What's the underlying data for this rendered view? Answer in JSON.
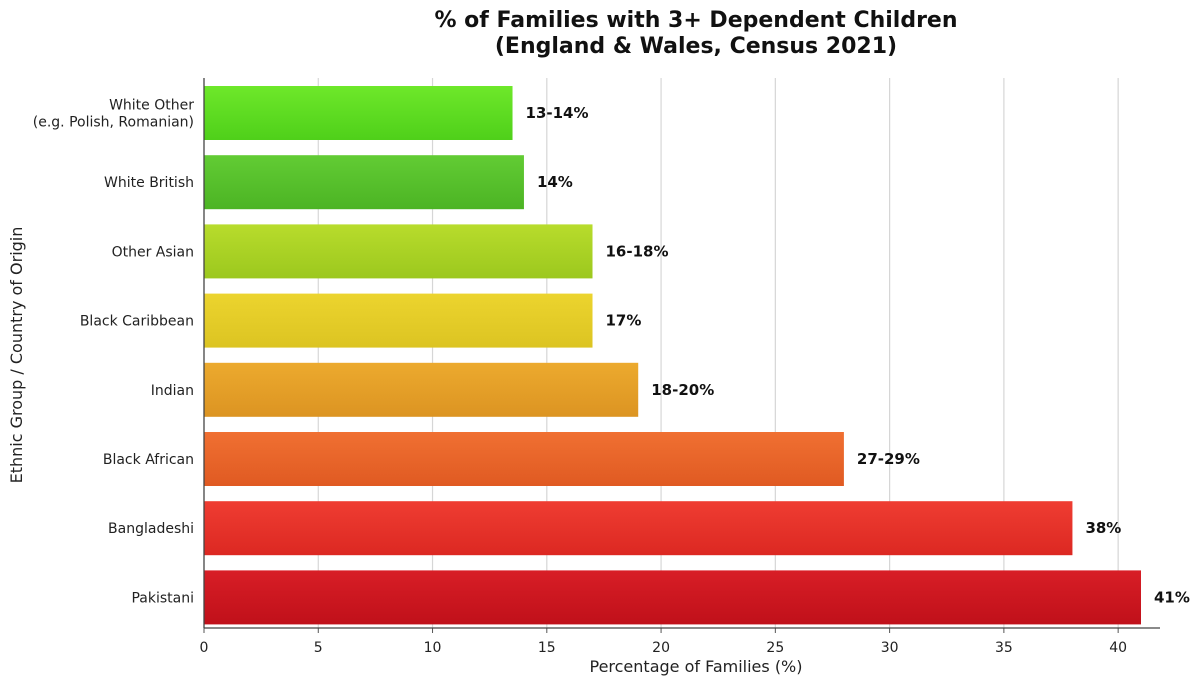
{
  "chart_data": {
    "type": "bar",
    "orientation": "horizontal",
    "title": [
      "% of Families with 3+ Dependent Children",
      "(England & Wales, Census 2021)"
    ],
    "xlabel": "Percentage of Families (%)",
    "ylabel": "Ethnic Group / Country of Origin",
    "xlim": [
      0,
      42
    ],
    "xticks": [
      0,
      5,
      10,
      15,
      20,
      25,
      30,
      35,
      40
    ],
    "grid": true,
    "bars": [
      {
        "category": [
          "White Other",
          "(e.g. Polish, Romanian)"
        ],
        "value": 13.5,
        "label": "13-14%",
        "color_top": "#6ee82a",
        "color_bottom": "#4fd01a"
      },
      {
        "category": [
          "White British"
        ],
        "value": 14,
        "label": "14%",
        "color_top": "#62cc34",
        "color_bottom": "#4cb424"
      },
      {
        "category": [
          "Other Asian"
        ],
        "value": 17,
        "label": "16-18%",
        "color_top": "#b8dc2c",
        "color_bottom": "#9cc81e"
      },
      {
        "category": [
          "Black Caribbean"
        ],
        "value": 17,
        "label": "17%",
        "color_top": "#ecd42e",
        "color_bottom": "#dcc422"
      },
      {
        "category": [
          "Indian"
        ],
        "value": 19,
        "label": "18-20%",
        "color_top": "#ecaa2e",
        "color_bottom": "#dc9422"
      },
      {
        "category": [
          "Black African"
        ],
        "value": 28,
        "label": "27-29%",
        "color_top": "#f07032",
        "color_bottom": "#e05a22"
      },
      {
        "category": [
          "Bangladeshi"
        ],
        "value": 38,
        "label": "38%",
        "color_top": "#ef3d32",
        "color_bottom": "#dc2822"
      },
      {
        "category": [
          "Pakistani"
        ],
        "value": 41,
        "label": "41%",
        "color_top": "#d81e26",
        "color_bottom": "#c0101a"
      }
    ]
  }
}
